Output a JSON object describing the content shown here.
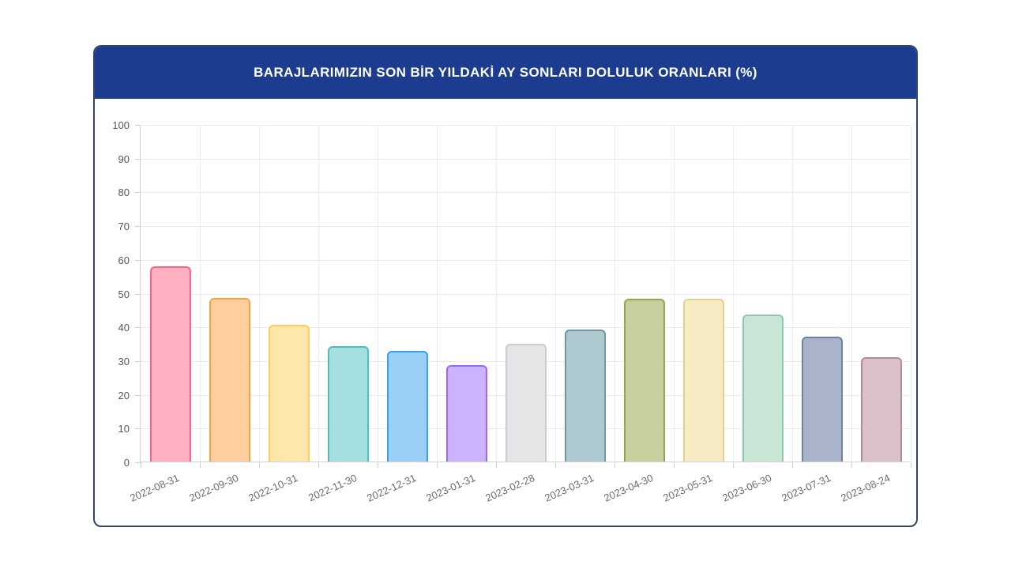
{
  "card": {
    "header_bg": "#1c3d8f",
    "title_color": "#ffffff",
    "border_color": "#35446b"
  },
  "chart_data": {
    "type": "bar",
    "title": "BARAJLARIMIZIN SON BİR YILDAKİ AY SONLARI DOLULUK ORANLARI (%)",
    "categories": [
      "2022-08-31",
      "2022-09-30",
      "2022-10-31",
      "2022-11-30",
      "2022-12-31",
      "2023-01-31",
      "2023-02-28",
      "2023-03-31",
      "2023-04-30",
      "2023-05-31",
      "2023-06-30",
      "2023-07-31",
      "2023-08-24"
    ],
    "values": [
      57.9,
      48.5,
      40.5,
      34.2,
      32.8,
      28.6,
      35.0,
      39.1,
      48.2,
      48.2,
      43.5,
      36.9,
      31.0
    ],
    "bar_colors": [
      {
        "fill": "#ffb1c1",
        "border": "#ff6384"
      },
      {
        "fill": "#ffcf9f",
        "border": "#ff9f40"
      },
      {
        "fill": "#ffe6aa",
        "border": "#ffcd56"
      },
      {
        "fill": "#a5dfdf",
        "border": "#4bc0c0"
      },
      {
        "fill": "#9ad0f5",
        "border": "#36a2eb"
      },
      {
        "fill": "#ccb2ff",
        "border": "#9966ff"
      },
      {
        "fill": "#e4e5e7",
        "border": "#c9cbcf"
      },
      {
        "fill": "#aec9cf",
        "border": "#6e99a3"
      },
      {
        "fill": "#c9ce9e",
        "border": "#9aa34e"
      },
      {
        "fill": "#f7ebc3",
        "border": "#e3cf8f"
      },
      {
        "fill": "#c8e5d6",
        "border": "#8fc7ac"
      },
      {
        "fill": "#a9b4cb",
        "border": "#72819f"
      },
      {
        "fill": "#dac0c8",
        "border": "#b08c99"
      }
    ],
    "xlabel": "",
    "ylabel": "",
    "ylim": [
      0,
      100
    ],
    "yticks": [
      0,
      10,
      20,
      30,
      40,
      50,
      60,
      70,
      80,
      90,
      100
    ],
    "grid": true,
    "legend_position": "none"
  }
}
